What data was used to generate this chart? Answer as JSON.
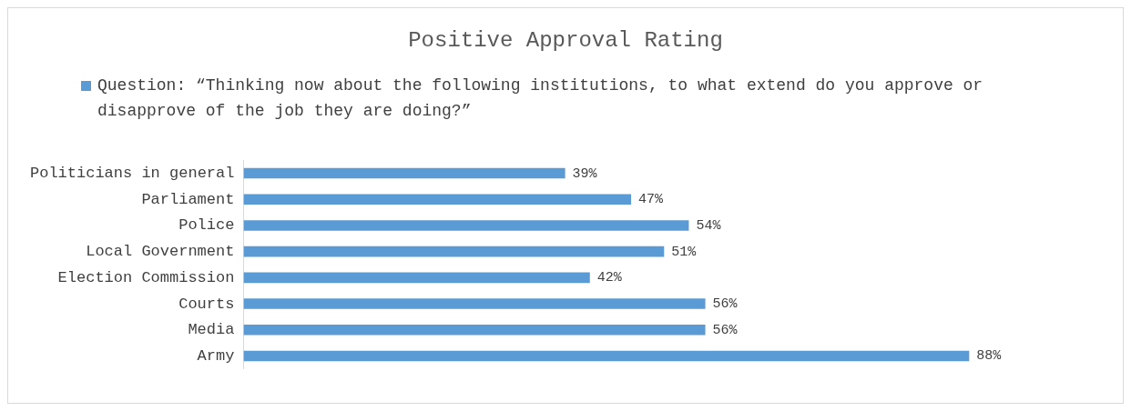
{
  "chart_data": {
    "type": "bar",
    "title": "Positive Approval Rating",
    "orientation": "horizontal",
    "legend": "top",
    "categories": [
      "Politicians in general",
      "Parliament",
      "Police",
      "Local Government",
      "Election Commission",
      "Courts",
      "Media",
      "Army"
    ],
    "series": [
      {
        "name": "Question: “Thinking now about the following institutions, to what extend do you approve or disapprove of the job they are doing?”",
        "color": "#5b9bd5",
        "values": [
          39,
          47,
          54,
          51,
          42,
          56,
          56,
          88
        ],
        "value_labels": [
          "39%",
          "47%",
          "54%",
          "51%",
          "42%",
          "56%",
          "56%",
          "88%"
        ]
      }
    ]
  }
}
